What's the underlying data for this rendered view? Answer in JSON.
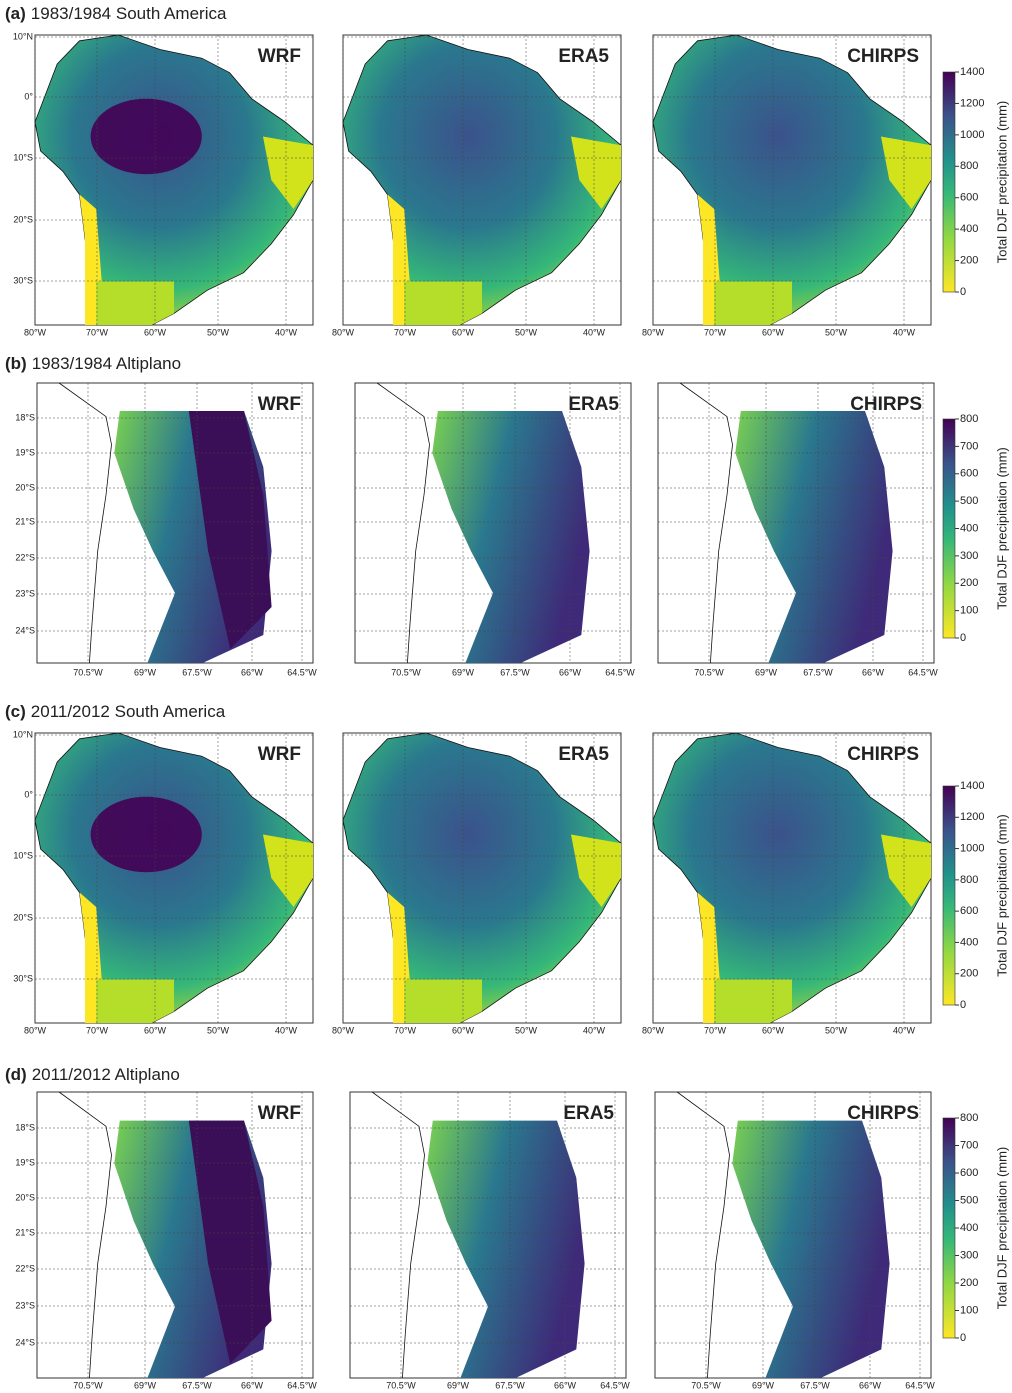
{
  "panels": [
    {
      "label": "(a)",
      "title": "1983/1984 South America",
      "models": [
        "WRF",
        "ERA5",
        "CHIRPS"
      ],
      "lat_ticks": [
        "10°N",
        "0°",
        "10°S",
        "20°S",
        "30°S"
      ],
      "lon_ticks": [
        "80°W",
        "70°W",
        "60°W",
        "50°W",
        "40°W"
      ],
      "colorbar": {
        "label": "Total DJF precipitation (mm)",
        "ticks": [
          0,
          200,
          400,
          600,
          800,
          1000,
          1200,
          1400
        ]
      }
    },
    {
      "label": "(b)",
      "title": "1983/1984 Altiplano",
      "models": [
        "WRF",
        "ERA5",
        "CHIRPS"
      ],
      "lat_ticks": [
        "18°S",
        "19°S",
        "20°S",
        "21°S",
        "22°S",
        "23°S",
        "24°S"
      ],
      "lon_ticks": [
        "70.5°W",
        "69°W",
        "67.5°W",
        "66°W",
        "64.5°W"
      ],
      "colorbar": {
        "label": "Total DJF precipitation (mm)",
        "ticks": [
          0,
          100,
          200,
          300,
          400,
          500,
          600,
          700,
          800
        ]
      }
    },
    {
      "label": "(c)",
      "title": "2011/2012 South America",
      "models": [
        "WRF",
        "ERA5",
        "CHIRPS"
      ],
      "lat_ticks": [
        "10°N",
        "0°",
        "10°S",
        "20°S",
        "30°S"
      ],
      "lon_ticks": [
        "80°W",
        "70°W",
        "60°W",
        "50°W",
        "40°W"
      ],
      "colorbar": {
        "label": "Total DJF precipitation (mm)",
        "ticks": [
          0,
          200,
          400,
          600,
          800,
          1000,
          1200,
          1400
        ]
      }
    },
    {
      "label": "(d)",
      "title": "2011/2012 Altiplano",
      "models": [
        "WRF",
        "ERA5",
        "CHIRPS"
      ],
      "lat_ticks": [
        "18°S",
        "19°S",
        "20°S",
        "21°S",
        "22°S",
        "23°S",
        "24°S"
      ],
      "lon_ticks": [
        "70.5°W",
        "69°W",
        "67.5°W",
        "66°W",
        "64.5°W"
      ],
      "colorbar": {
        "label": "Total DJF precipitation (mm)",
        "ticks": [
          0,
          100,
          200,
          300,
          400,
          500,
          600,
          700,
          800
        ]
      }
    }
  ]
}
